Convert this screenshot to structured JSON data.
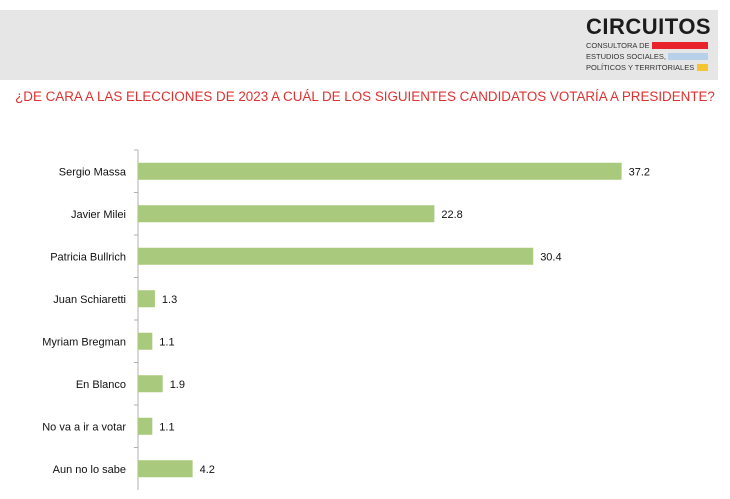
{
  "brand": {
    "name": "CIRCUITOS",
    "tagline_1": "CONSULTORA DE",
    "tagline_2": "ESTUDIOS SOCIALES,",
    "tagline_3": "POLÍTICOS Y TERRITORIALES",
    "stripe_colors": [
      "#e8232b",
      "#b6d0ea",
      "#f4c531"
    ]
  },
  "chart_data": {
    "type": "bar",
    "orientation": "horizontal",
    "title": "¿DE CARA A LAS ELECCIONES DE 2023 A CUÁL DE LOS SIGUIENTES CANDIDATOS VOTARÍA A PRESIDENTE?",
    "categories": [
      "Sergio Massa",
      "Javier Milei",
      "Patricia Bullrich",
      "Juan Schiaretti",
      "Myriam Bregman",
      "En Blanco",
      "No va a ir a votar",
      "Aun no lo sabe"
    ],
    "values": [
      37.2,
      22.8,
      30.4,
      1.3,
      1.1,
      1.9,
      1.1,
      4.2
    ],
    "value_labels": [
      "37.2",
      "22.8",
      "30.4",
      "1.3",
      "1.1",
      "1.9",
      "1.1",
      "4.2"
    ],
    "xlim": [
      0,
      40
    ],
    "bar_color": "#a9c97c",
    "title_color": "#e03030",
    "grid": false,
    "legend": false
  }
}
